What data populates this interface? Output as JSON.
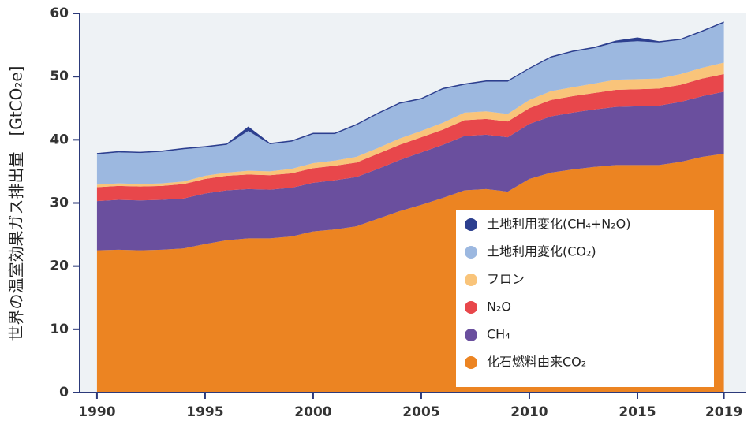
{
  "chart_data": {
    "type": "stacked-area",
    "y_label": "世界の温室効果ガス排出量　[GtCO₂e]",
    "x": [
      1990,
      1991,
      1992,
      1993,
      1994,
      1995,
      1996,
      1997,
      1998,
      1999,
      2000,
      2001,
      2002,
      2003,
      2004,
      2005,
      2006,
      2007,
      2008,
      2009,
      2010,
      2011,
      2012,
      2013,
      2014,
      2015,
      2016,
      2017,
      2018,
      2019
    ],
    "series": [
      {
        "name": "化石燃料由来CO₂",
        "color": "#ec8422",
        "values": [
          22.5,
          22.6,
          22.5,
          22.6,
          22.8,
          23.5,
          24.1,
          24.4,
          24.4,
          24.7,
          25.5,
          25.8,
          26.3,
          27.5,
          28.7,
          29.7,
          30.8,
          32.0,
          32.2,
          31.8,
          33.8,
          34.8,
          35.3,
          35.7,
          36.0,
          36.0,
          36.0,
          36.5,
          37.3,
          37.8
        ]
      },
      {
        "name": "CH₄",
        "color": "#6a4f9e",
        "values": [
          7.8,
          7.9,
          7.9,
          7.9,
          7.9,
          8.0,
          7.9,
          7.8,
          7.7,
          7.7,
          7.7,
          7.8,
          7.8,
          7.9,
          8.1,
          8.3,
          8.4,
          8.6,
          8.6,
          8.6,
          8.7,
          8.9,
          9.0,
          9.1,
          9.2,
          9.3,
          9.4,
          9.5,
          9.6,
          9.8
        ]
      },
      {
        "name": "N₂O",
        "color": "#e8474b",
        "values": [
          2.2,
          2.2,
          2.2,
          2.2,
          2.3,
          2.3,
          2.3,
          2.3,
          2.3,
          2.3,
          2.3,
          2.3,
          2.3,
          2.4,
          2.4,
          2.4,
          2.4,
          2.5,
          2.5,
          2.5,
          2.5,
          2.6,
          2.6,
          2.6,
          2.7,
          2.7,
          2.7,
          2.7,
          2.8,
          2.8
        ]
      },
      {
        "name": "フロン",
        "color": "#f9c47a",
        "values": [
          0.4,
          0.4,
          0.4,
          0.4,
          0.4,
          0.5,
          0.5,
          0.6,
          0.6,
          0.7,
          0.8,
          0.8,
          0.9,
          0.9,
          1.0,
          1.0,
          1.1,
          1.2,
          1.2,
          1.2,
          1.3,
          1.4,
          1.4,
          1.5,
          1.6,
          1.6,
          1.6,
          1.7,
          1.7,
          1.8
        ]
      },
      {
        "name": "土地利用変化(CO₂)",
        "color": "#9cb8e0",
        "values": [
          4.8,
          4.9,
          4.9,
          5.0,
          5.1,
          4.5,
          4.4,
          6.3,
          4.3,
          4.3,
          4.6,
          4.2,
          5.0,
          5.4,
          5.5,
          5.0,
          5.3,
          4.4,
          4.7,
          5.1,
          4.9,
          5.3,
          5.6,
          5.6,
          5.9,
          6.0,
          5.7,
          5.4,
          5.7,
          6.3
        ]
      },
      {
        "name": "土地利用変化(CH₄+N₂O)",
        "color": "#2c3f8f",
        "values": [
          0.2,
          0.2,
          0.2,
          0.2,
          0.2,
          0.2,
          0.2,
          0.7,
          0.2,
          0.2,
          0.2,
          0.2,
          0.2,
          0.2,
          0.2,
          0.2,
          0.2,
          0.2,
          0.2,
          0.2,
          0.2,
          0.2,
          0.2,
          0.2,
          0.3,
          0.6,
          0.2,
          0.2,
          0.2,
          0.2
        ]
      }
    ],
    "xlim": [
      1989.2,
      2020
    ],
    "xticks": [
      1990,
      1995,
      2000,
      2005,
      2010,
      2015,
      2019
    ],
    "ylim": [
      0,
      60
    ],
    "yticks": [
      0,
      10,
      20,
      30,
      40,
      50,
      60
    ],
    "legend": "bottom-right"
  }
}
